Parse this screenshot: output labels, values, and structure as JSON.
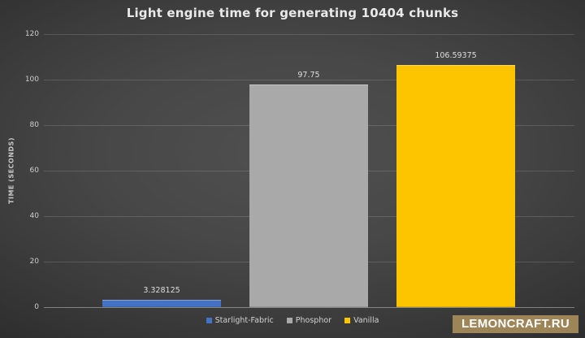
{
  "chart_data": {
    "type": "bar",
    "title": "Light engine time for generating 10404 chunks",
    "categories": [
      "Starlight-Fabric",
      "Phosphor",
      "Vanilla"
    ],
    "values": [
      3.328125,
      97.75,
      106.59375
    ],
    "value_labels": [
      "3.328125",
      "97.75",
      "106.59375"
    ],
    "bar_colors": [
      "#4472c4",
      "#a9a9a9",
      "#fdc400"
    ],
    "xlabel": "",
    "ylabel": "TIME (SECONDS)",
    "ylim": [
      0,
      120
    ],
    "yticks": [
      0,
      20,
      40,
      60,
      80,
      100,
      120
    ],
    "grid": true,
    "legend_position": "bottom",
    "legend": [
      {
        "label": "Starlight-Fabric",
        "color": "#4472c4"
      },
      {
        "label": "Phosphor",
        "color": "#a9a9a9"
      },
      {
        "label": "Vanilla",
        "color": "#fdc400"
      }
    ]
  },
  "watermark": {
    "text": "LEMONCRAFT.RU",
    "bg_color": "#9d8557",
    "text_color": "#ffffff"
  },
  "theme": {
    "background_center": "#505050",
    "background_edge": "#242424",
    "title_color": "#e9e9e9",
    "tick_color": "#cdcdcd",
    "gridline_color": "rgba(255,255,255,0.14)"
  }
}
